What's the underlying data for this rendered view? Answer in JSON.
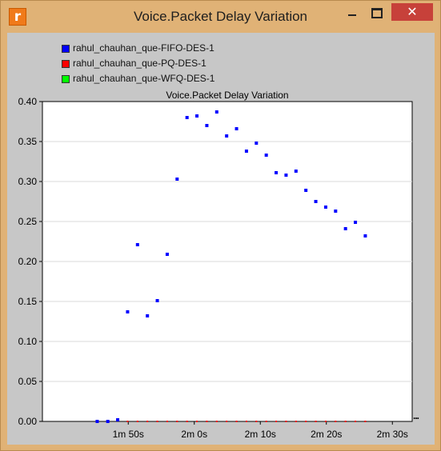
{
  "window": {
    "title": "Voice.Packet Delay Variation",
    "icon_letter": "r",
    "minimize_icon": "minimize-icon",
    "maximize_icon": "maximize-icon",
    "close_icon": "close-icon",
    "close_glyph": "✕"
  },
  "legend": [
    {
      "label": "rahul_chauhan_que-FIFO-DES-1",
      "color": "#0000ff"
    },
    {
      "label": "rahul_chauhan_que-PQ-DES-1",
      "color": "#ff0000"
    },
    {
      "label": "rahul_chauhan_que-WFQ-DES-1",
      "color": "#00ff00"
    }
  ],
  "more_indicator": "...",
  "chart_data": {
    "type": "scatter",
    "title": "Voice.Packet Delay Variation",
    "xlabel": "",
    "ylabel": "",
    "xlim": [
      97,
      153
    ],
    "ylim": [
      0,
      0.4
    ],
    "x_ticks": [
      {
        "value": 110,
        "label": "1m 50s"
      },
      {
        "value": 120,
        "label": "2m 0s"
      },
      {
        "value": 130,
        "label": "2m 10s"
      },
      {
        "value": 140,
        "label": "2m 20s"
      },
      {
        "value": 150,
        "label": "2m 30s"
      }
    ],
    "y_ticks": [
      {
        "value": 0.0,
        "label": "0.00"
      },
      {
        "value": 0.05,
        "label": "0.05"
      },
      {
        "value": 0.1,
        "label": "0.10"
      },
      {
        "value": 0.15,
        "label": "0.15"
      },
      {
        "value": 0.2,
        "label": "0.20"
      },
      {
        "value": 0.25,
        "label": "0.25"
      },
      {
        "value": 0.3,
        "label": "0.30"
      },
      {
        "value": 0.35,
        "label": "0.35"
      },
      {
        "value": 0.4,
        "label": "0.40"
      }
    ],
    "grid": true,
    "series": [
      {
        "name": "rahul_chauhan_que-FIFO-DES-1",
        "color": "#0000ff",
        "points": [
          [
            105.3,
            0.0
          ],
          [
            106.9,
            0.0
          ],
          [
            108.4,
            0.002
          ],
          [
            109.9,
            0.137
          ],
          [
            111.4,
            0.221
          ],
          [
            112.9,
            0.132
          ],
          [
            114.4,
            0.151
          ],
          [
            115.9,
            0.209
          ],
          [
            117.4,
            0.303
          ],
          [
            118.9,
            0.38
          ],
          [
            120.4,
            0.382
          ],
          [
            121.9,
            0.37
          ],
          [
            123.4,
            0.387
          ],
          [
            124.9,
            0.357
          ],
          [
            126.4,
            0.366
          ],
          [
            127.9,
            0.338
          ],
          [
            129.4,
            0.348
          ],
          [
            130.9,
            0.333
          ],
          [
            132.4,
            0.311
          ],
          [
            133.9,
            0.308
          ],
          [
            135.4,
            0.313
          ],
          [
            136.9,
            0.289
          ],
          [
            138.4,
            0.275
          ],
          [
            139.9,
            0.268
          ],
          [
            141.4,
            0.263
          ],
          [
            142.9,
            0.241
          ],
          [
            144.4,
            0.249
          ],
          [
            145.9,
            0.232
          ]
        ]
      },
      {
        "name": "rahul_chauhan_que-PQ-DES-1",
        "color": "#ff0000",
        "points": [
          [
            109.9,
            0.0
          ],
          [
            111.4,
            0.0
          ],
          [
            112.9,
            0.0
          ],
          [
            114.4,
            0.0
          ],
          [
            115.9,
            0.0
          ],
          [
            117.4,
            0.0
          ],
          [
            118.9,
            0.0
          ],
          [
            120.4,
            0.0
          ],
          [
            121.9,
            0.0
          ],
          [
            123.4,
            0.0
          ],
          [
            124.9,
            0.0
          ],
          [
            126.4,
            0.0
          ],
          [
            127.9,
            0.0
          ],
          [
            129.4,
            0.0
          ],
          [
            130.9,
            0.0
          ],
          [
            132.4,
            0.0
          ],
          [
            133.9,
            0.0
          ],
          [
            135.4,
            0.0
          ],
          [
            136.9,
            0.0
          ],
          [
            138.4,
            0.0
          ],
          [
            139.9,
            0.0
          ],
          [
            141.4,
            0.0
          ],
          [
            142.9,
            0.0
          ],
          [
            144.4,
            0.0
          ],
          [
            145.9,
            0.0
          ]
        ]
      },
      {
        "name": "rahul_chauhan_que-WFQ-DES-1",
        "color": "#00ff00",
        "points": []
      }
    ]
  }
}
